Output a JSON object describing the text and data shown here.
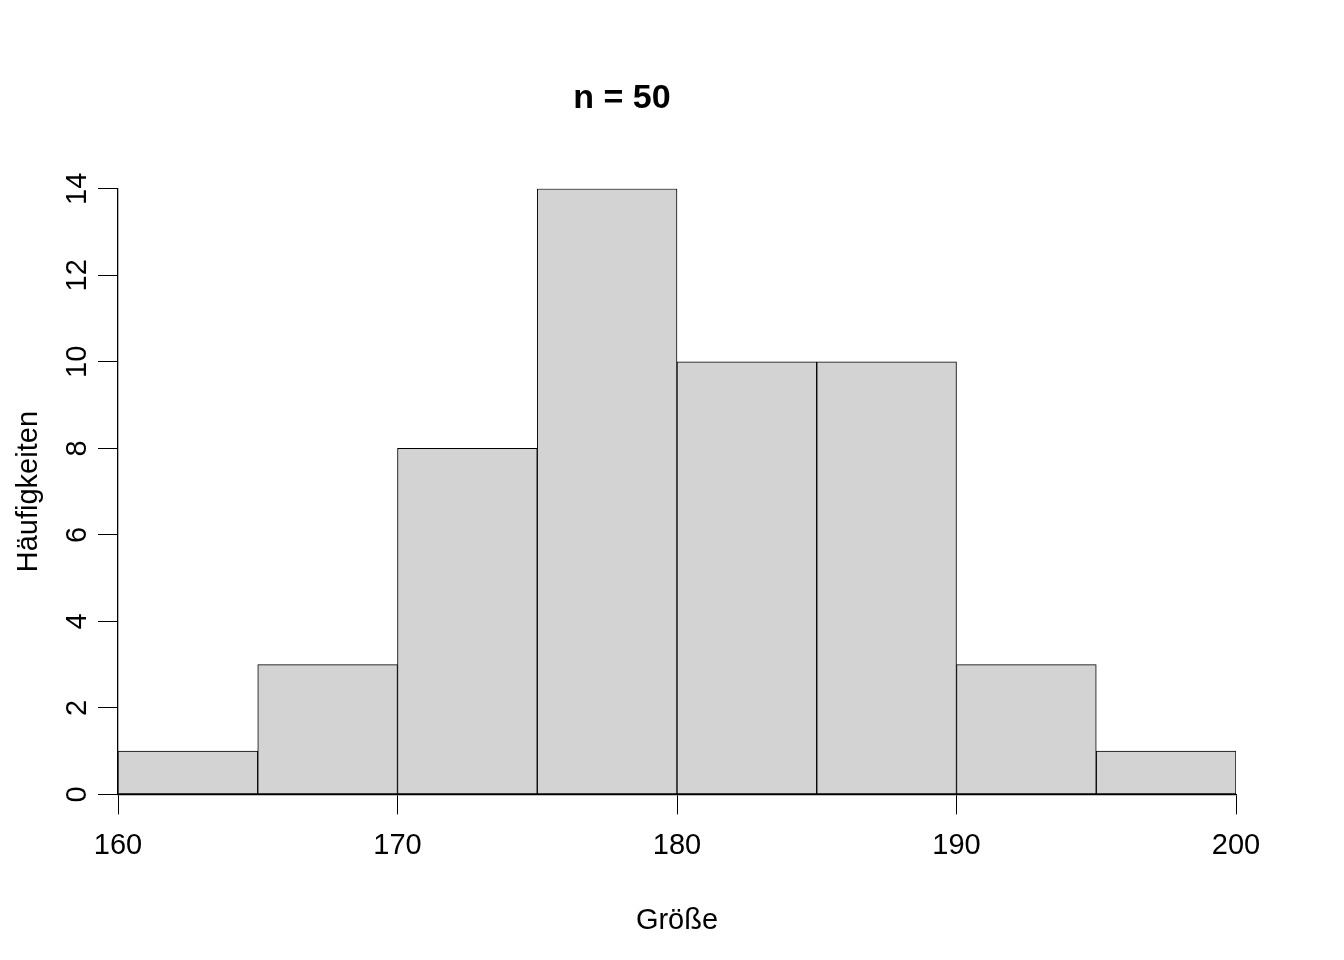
{
  "chart_data": {
    "type": "histogram",
    "title": "n = 50",
    "xlabel": "Größe",
    "ylabel": "Häufigkeiten",
    "bins": [
      160,
      165,
      170,
      175,
      180,
      185,
      190,
      195,
      200
    ],
    "values": [
      1,
      3,
      8,
      14,
      10,
      10,
      3,
      1
    ],
    "color": "#d3d3d3",
    "xlim": [
      160,
      200
    ],
    "xticks": [
      160,
      170,
      180,
      190,
      200
    ],
    "ylim": [
      0,
      14
    ],
    "yticks": [
      0,
      2,
      4,
      6,
      8,
      10,
      12,
      14
    ]
  }
}
